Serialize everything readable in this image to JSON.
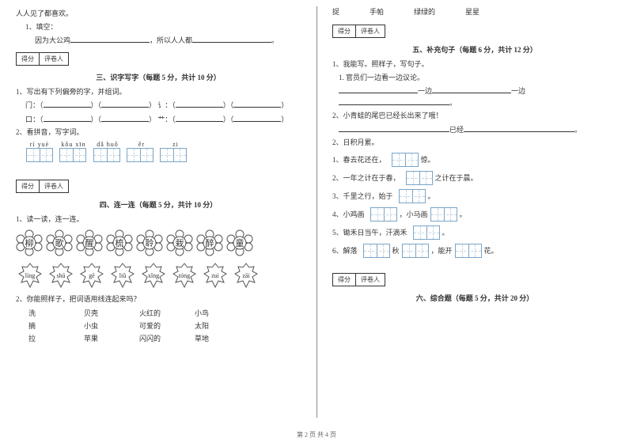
{
  "left": {
    "intro1": "人人见了都喜欢。",
    "intro_fill_label": "1、填空：",
    "intro_fill_line": "因为大公鸡",
    "intro_fill_tail": "，所以人人都",
    "score_label1": "得分",
    "score_label2": "评卷人",
    "s3_title": "三、识字写字（每题 5 分，共计 10 分）",
    "s3_q1": "1、写出有下列偏旁的字，并组词。",
    "s3_row1_a": "门：（",
    "s3_row1_b": "）（",
    "s3_row1_c": "） 讠：（",
    "s3_row1_d": "）（",
    "s3_row1_e": "）",
    "s3_row2_a": "口：（",
    "s3_row2_b": "）（",
    "s3_row2_c": "） 艹：（",
    "s3_row2_d": "）（",
    "s3_row2_e": "）",
    "s3_q2": "2、看拼音，写字词。",
    "pinyin": [
      "rì  yuè",
      "kǒu  xīn",
      "dǎ  huǒ",
      "ěr",
      "zi"
    ],
    "s4_title": "四、连一连（每题 5 分，共计 10 分）",
    "s4_q1": "1、读一读，连一连。",
    "flowers": [
      "柳",
      "歌",
      "醒",
      "梳",
      "聆",
      "栽",
      "醉",
      "童"
    ],
    "leaves": [
      "líng",
      "shū",
      "gē",
      "liǔ",
      "xǐng",
      "tóng",
      "zuì",
      "zāi"
    ],
    "s4_q2": "2、你能照样子，把词语用线连起来吗？",
    "wrows": [
      [
        "洗",
        "贝壳",
        "火红的",
        "小鸟"
      ],
      [
        "摘",
        "小虫",
        "可爱的",
        "太阳"
      ],
      [
        "拉",
        "苹果",
        "闪闪的",
        "草地"
      ]
    ]
  },
  "right": {
    "top": [
      "捉",
      "手帕",
      "绿绿的",
      "星星"
    ],
    "score_label1": "得分",
    "score_label2": "评卷人",
    "s5_title": "五、补充句子（每题 6 分，共计 12 分）",
    "s5_q1": "1、我能写。照样子，写句子。",
    "s5_line1": "1. 官员们一边看一边议论。",
    "s5_yibian1": "一边",
    "s5_yibian2": "一边",
    "s5_q2": "2、小青蛙的尾巴已经长出来了哦！",
    "s5_yijing": "已经",
    "s5_sec2": "2、日积月累。",
    "items": [
      {
        "pre": "1、春去花还在，",
        "post": "惊。"
      },
      {
        "pre": "2、一年之计在于春，",
        "post": "之计在于晨。"
      },
      {
        "pre": "3、千里之行，始于",
        "post": "。"
      },
      {
        "pre": "4、小鸡画",
        "mid": "，小马画",
        "post": "。"
      },
      {
        "pre": "5、锄禾日当午，汗滴禾",
        "post": "。"
      },
      {
        "pre": "6、解落",
        "mid1": "秋",
        "mid2": "，能开",
        "post": "花。"
      }
    ],
    "s6_title": "六、综合题（每题 5 分，共计 20 分）"
  },
  "footer": "第 2 页  共 4 页"
}
